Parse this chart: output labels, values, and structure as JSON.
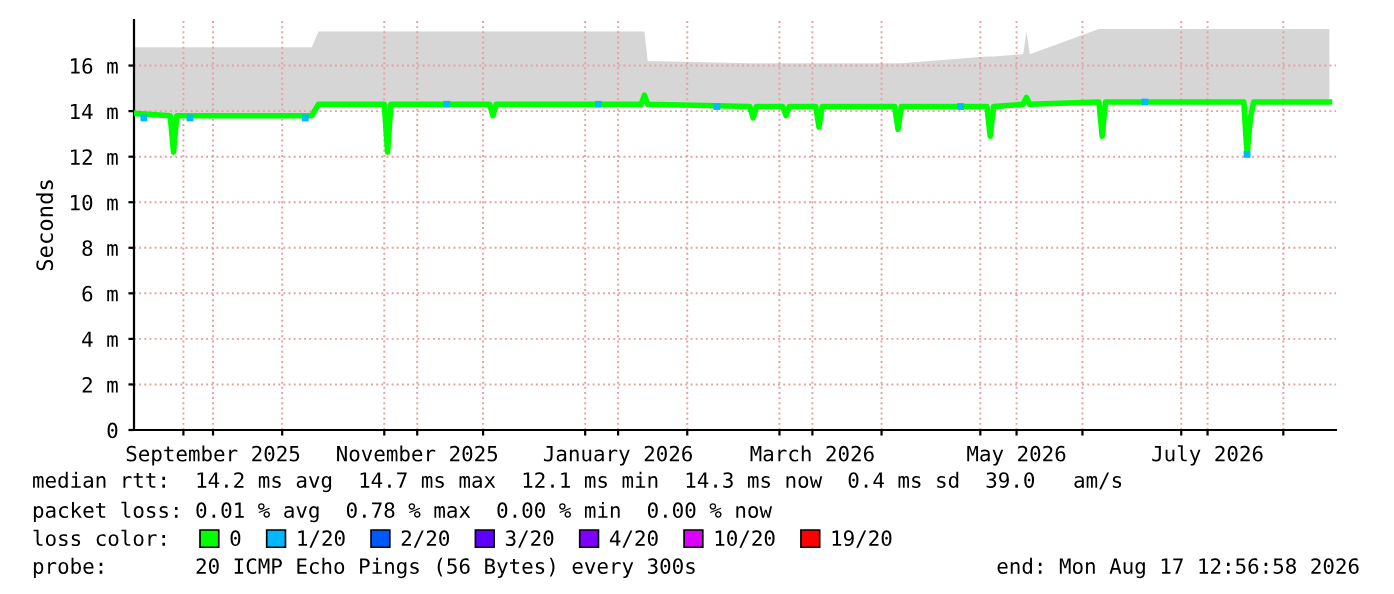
{
  "chart_data": {
    "type": "line",
    "ylabel": "Seconds",
    "legend_title": "loss color:",
    "legend": "bottom",
    "grid": true,
    "line_style": "solid",
    "xlim": [
      "2025-08-17",
      "2026-08-17"
    ],
    "xticks": [
      {
        "value": "2025-09-01",
        "label": null
      },
      {
        "value": "2025-10-01",
        "label": null
      },
      {
        "value": "2025-11-01",
        "label": null
      },
      {
        "value": "2025-12-01",
        "label": null
      },
      {
        "value": "2026-01-01",
        "label": null
      },
      {
        "value": "2026-02-01",
        "label": null
      },
      {
        "value": "2026-03-01",
        "label": null
      },
      {
        "value": "2026-04-01",
        "label": null
      },
      {
        "value": "2026-05-01",
        "label": null
      },
      {
        "value": "2026-06-01",
        "label": null
      },
      {
        "value": "2026-07-01",
        "label": null
      },
      {
        "value": "2026-08-01",
        "label": null
      },
      {
        "value": "2025-09-10",
        "label": "September 2025"
      },
      {
        "value": "2025-11-11",
        "label": "November 2025"
      },
      {
        "value": "2026-01-11",
        "label": "January 2026"
      },
      {
        "value": "2026-03-11",
        "label": "March 2026"
      },
      {
        "value": "2026-05-12",
        "label": "May 2026"
      },
      {
        "value": "2026-07-09",
        "label": "July 2026"
      }
    ],
    "ylim": [
      0,
      18
    ],
    "yticks": [
      0,
      {
        "value": 2,
        "label": "2 m"
      },
      {
        "value": 4,
        "label": "4 m"
      },
      {
        "value": 6,
        "label": "6 m"
      },
      {
        "value": 8,
        "label": "8 m"
      },
      {
        "value": 10,
        "label": "10 m"
      },
      {
        "value": 12,
        "label": "12 m"
      },
      {
        "value": 14,
        "label": "14 m"
      },
      {
        "value": 16,
        "label": "16 m"
      }
    ],
    "series": [
      {
        "name": "0",
        "color": "#00ff00",
        "x": [
          "2025-08-17",
          "2025-08-28",
          "2025-08-29",
          "2025-08-30",
          "2025-10-10",
          "2025-10-12",
          "2025-11-01",
          "2025-11-02",
          "2025-11-03",
          "2025-12-03",
          "2025-12-04",
          "2025-12-05",
          "2026-01-18",
          "2026-01-19",
          "2026-01-20",
          "2026-02-20",
          "2026-02-21",
          "2026-02-22",
          "2026-03-02",
          "2026-03-03",
          "2026-03-04",
          "2026-03-12",
          "2026-03-13",
          "2026-03-14",
          "2026-04-05",
          "2026-04-06",
          "2026-04-07",
          "2026-05-03",
          "2026-05-04",
          "2026-05-05",
          "2026-05-14",
          "2026-05-15",
          "2026-05-16",
          "2026-06-06",
          "2026-06-07",
          "2026-06-08",
          "2026-07-20",
          "2026-07-21",
          "2026-07-22",
          "2026-07-23",
          "2026-08-15"
        ],
        "values": [
          13.9,
          13.8,
          12.2,
          13.8,
          13.8,
          14.3,
          14.3,
          12.2,
          14.3,
          14.3,
          13.8,
          14.3,
          14.3,
          14.7,
          14.3,
          14.2,
          13.7,
          14.2,
          14.2,
          13.8,
          14.2,
          14.2,
          13.3,
          14.2,
          14.2,
          13.2,
          14.2,
          14.2,
          12.9,
          14.2,
          14.3,
          14.6,
          14.3,
          14.4,
          12.9,
          14.4,
          14.4,
          12.1,
          13.7,
          14.4,
          14.4
        ],
        "lower": [
          13.8,
          13.7,
          12.2,
          13.7,
          13.7,
          14.2,
          14.2,
          12.2,
          14.2,
          14.2,
          13.7,
          14.2,
          14.2,
          14.2,
          14.2,
          14.1,
          13.7,
          14.1,
          14.1,
          13.8,
          14.1,
          14.1,
          13.3,
          14.1,
          14.1,
          13.2,
          14.1,
          14.1,
          12.9,
          14.1,
          14.2,
          14.2,
          14.2,
          14.3,
          12.9,
          14.3,
          14.3,
          12.1,
          13.7,
          14.3,
          14.3
        ],
        "upper": [
          16.8,
          16.8,
          16.8,
          16.8,
          16.8,
          17.5,
          17.5,
          17.5,
          17.5,
          17.5,
          17.5,
          17.5,
          17.5,
          17.5,
          16.2,
          16.1,
          16.1,
          16.1,
          16.1,
          16.1,
          16.1,
          16.1,
          16.1,
          16.1,
          16.1,
          16.1,
          16.1,
          16.4,
          16.4,
          16.4,
          16.5,
          17.5,
          16.5,
          17.6,
          17.6,
          17.6,
          17.6,
          17.6,
          17.6,
          17.6,
          17.6
        ]
      },
      {
        "name": "1/20",
        "color": "#00b8ff",
        "type": "scatter",
        "marker": "square",
        "x": [
          "2025-08-20",
          "2025-09-03",
          "2025-10-08",
          "2025-11-20",
          "2026-01-05",
          "2026-02-10",
          "2026-04-25",
          "2026-06-20",
          "2026-07-21"
        ],
        "values": [
          13.7,
          13.7,
          13.7,
          14.3,
          14.3,
          14.2,
          14.2,
          14.4,
          12.1
        ]
      },
      {
        "name": "2/20",
        "color": "#0059ff",
        "type": "scatter"
      },
      {
        "name": "3/20",
        "color": "#5e00ff",
        "type": "scatter"
      },
      {
        "name": "4/20",
        "color": "#7e00ff",
        "type": "scatter"
      },
      {
        "name": "10/20",
        "color": "#dd00ff",
        "type": "scatter"
      },
      {
        "name": "19/20",
        "color": "#ff0000",
        "type": "scatter"
      }
    ],
    "annotations": [
      "median rtt:  14.2 ms avg  14.7 ms max  12.1 ms min  14.3 ms now  0.4 ms sd  39.0   am/s",
      "packet loss: 0.01 % avg  0.78 % max  0.00 % min  0.00 % now",
      "probe:       20 ICMP Echo Pings (56 Bytes) every 300s",
      "end: Mon Aug 17 12:56:58 2026"
    ]
  }
}
